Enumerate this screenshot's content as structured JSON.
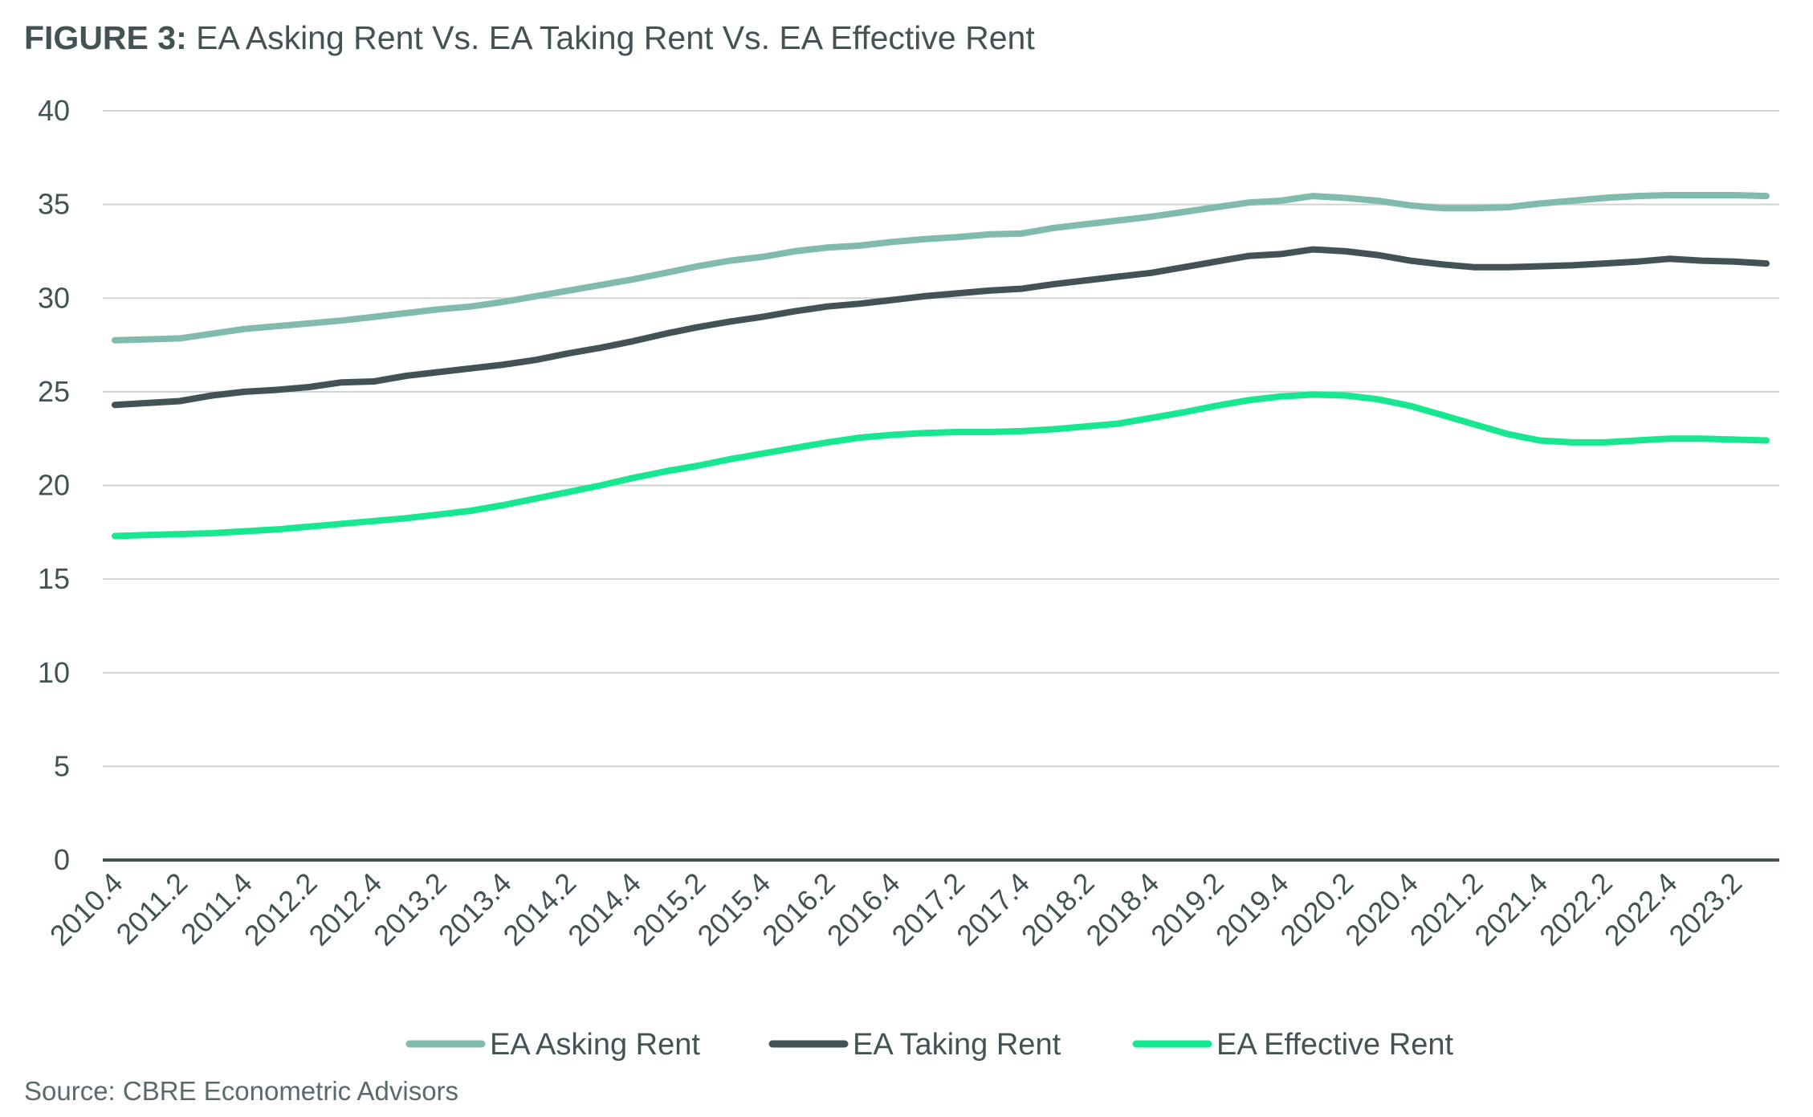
{
  "title": {
    "prefix": "FIGURE 3:",
    "text": "EA Asking Rent Vs. EA Taking Rent Vs. EA Effective Rent"
  },
  "source": "Source: CBRE Econometric Advisors",
  "chart_data": {
    "type": "line",
    "title": "EA Asking Rent Vs. EA Taking Rent Vs. EA Effective Rent",
    "xlabel": "",
    "ylabel": "",
    "ylim": [
      0,
      40
    ],
    "yticks": [
      0,
      5,
      10,
      15,
      20,
      25,
      30,
      35,
      40
    ],
    "grid": true,
    "legend_position": "bottom",
    "x": [
      "2010.4",
      "2011.1",
      "2011.2",
      "2011.3",
      "2011.4",
      "2012.1",
      "2012.2",
      "2012.3",
      "2012.4",
      "2013.1",
      "2013.2",
      "2013.3",
      "2013.4",
      "2014.1",
      "2014.2",
      "2014.3",
      "2014.4",
      "2015.1",
      "2015.2",
      "2015.3",
      "2015.4",
      "2016.1",
      "2016.2",
      "2016.3",
      "2016.4",
      "2017.1",
      "2017.2",
      "2017.3",
      "2017.4",
      "2018.1",
      "2018.2",
      "2018.3",
      "2018.4",
      "2019.1",
      "2019.2",
      "2019.3",
      "2019.4",
      "2020.1",
      "2020.2",
      "2020.3",
      "2020.4",
      "2021.1",
      "2021.2",
      "2021.3",
      "2021.4",
      "2022.1",
      "2022.2",
      "2022.3",
      "2022.4",
      "2023.1",
      "2023.2",
      "2023.3"
    ],
    "xtick_labels": [
      "2010.4",
      "2011.2",
      "2011.4",
      "2012.2",
      "2012.4",
      "2013.2",
      "2013.4",
      "2014.2",
      "2014.4",
      "2015.2",
      "2015.4",
      "2016.2",
      "2016.4",
      "2017.2",
      "2017.4",
      "2018.2",
      "2018.4",
      "2019.2",
      "2019.4",
      "2020.2",
      "2020.4",
      "2021.2",
      "2021.4",
      "2022.2",
      "2022.4",
      "2023.2"
    ],
    "series": [
      {
        "name": "EA Asking Rent",
        "color": "#80BBAD",
        "values": [
          27.75,
          27.8,
          27.85,
          28.1,
          28.35,
          28.5,
          28.65,
          28.8,
          29.0,
          29.2,
          29.4,
          29.55,
          29.8,
          30.1,
          30.4,
          30.7,
          31.0,
          31.35,
          31.7,
          32.0,
          32.2,
          32.5,
          32.7,
          32.8,
          33.0,
          33.15,
          33.25,
          33.4,
          33.45,
          33.75,
          33.95,
          34.15,
          34.35,
          34.6,
          34.85,
          35.1,
          35.2,
          35.45,
          35.35,
          35.2,
          34.95,
          34.8,
          34.8,
          34.85,
          35.05,
          35.2,
          35.35,
          35.45,
          35.5,
          35.5,
          35.5,
          35.45
        ]
      },
      {
        "name": "EA Taking Rent",
        "color": "#435254",
        "values": [
          24.3,
          24.4,
          24.5,
          24.8,
          25.0,
          25.1,
          25.25,
          25.5,
          25.55,
          25.85,
          26.05,
          26.25,
          26.45,
          26.7,
          27.05,
          27.35,
          27.7,
          28.1,
          28.45,
          28.75,
          29.0,
          29.3,
          29.55,
          29.7,
          29.9,
          30.1,
          30.25,
          30.4,
          30.5,
          30.75,
          30.95,
          31.15,
          31.35,
          31.65,
          31.95,
          32.25,
          32.35,
          32.6,
          32.5,
          32.3,
          32.0,
          31.8,
          31.65,
          31.65,
          31.7,
          31.75,
          31.85,
          31.95,
          32.1,
          32.0,
          31.95,
          31.85
        ]
      },
      {
        "name": "EA Effective Rent",
        "color": "#17E88F",
        "values": [
          17.3,
          17.35,
          17.4,
          17.45,
          17.55,
          17.65,
          17.8,
          17.95,
          18.1,
          18.25,
          18.45,
          18.65,
          18.95,
          19.3,
          19.65,
          20.0,
          20.4,
          20.75,
          21.05,
          21.4,
          21.7,
          22.0,
          22.3,
          22.55,
          22.7,
          22.8,
          22.85,
          22.85,
          22.9,
          23.0,
          23.15,
          23.3,
          23.6,
          23.9,
          24.25,
          24.55,
          24.75,
          24.85,
          24.8,
          24.6,
          24.25,
          23.75,
          23.25,
          22.75,
          22.4,
          22.3,
          22.3,
          22.4,
          22.5,
          22.5,
          22.45,
          22.4
        ]
      }
    ]
  }
}
